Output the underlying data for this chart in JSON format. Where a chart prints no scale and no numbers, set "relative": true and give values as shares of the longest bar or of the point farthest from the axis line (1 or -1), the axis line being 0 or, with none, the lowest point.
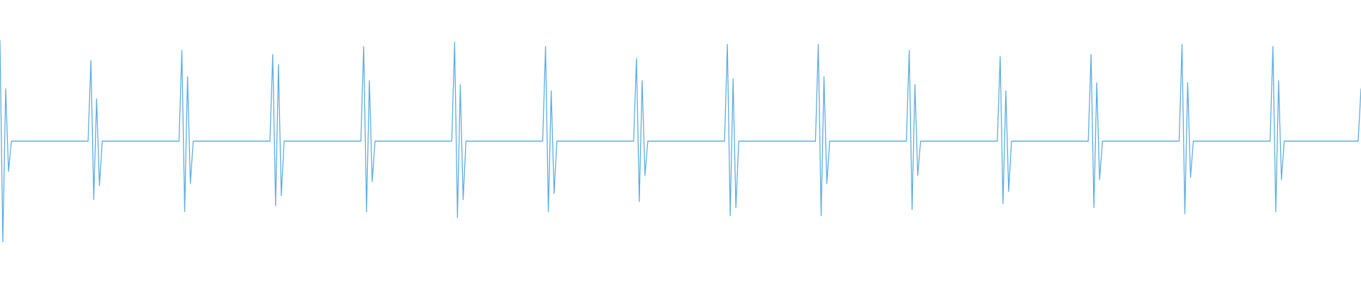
{
  "chart_data": {
    "type": "line",
    "relative": true,
    "tick_labels": false,
    "line_style": "solid",
    "categories": [
      null,
      null,
      null,
      null,
      null,
      null,
      null,
      null,
      null,
      null,
      null,
      null,
      null,
      null,
      null,
      null,
      null,
      null,
      null,
      null,
      null,
      null,
      null,
      null,
      null,
      null,
      null,
      null,
      null,
      null,
      null,
      null,
      null,
      null,
      null,
      null,
      null,
      null,
      null,
      null,
      null,
      null,
      null,
      null,
      null,
      null,
      null,
      null,
      null,
      null,
      null,
      null,
      null,
      null,
      null,
      null,
      null,
      null,
      null,
      null,
      null,
      null,
      null,
      null,
      null,
      null,
      null,
      null,
      null,
      null,
      null,
      null,
      null,
      null,
      null,
      null,
      null,
      null,
      null,
      null,
      null,
      null,
      null,
      null,
      null,
      null,
      null,
      null,
      null,
      null,
      null,
      null,
      null,
      null,
      null,
      null,
      null,
      null,
      null,
      null,
      null,
      null,
      null,
      null,
      null,
      null,
      null,
      null,
      null,
      null,
      null,
      null,
      null,
      null,
      null,
      null,
      null,
      null,
      null,
      null,
      null,
      null,
      null,
      null,
      null,
      null,
      null,
      null,
      null,
      null,
      null,
      null,
      null,
      null,
      null,
      null,
      null,
      null,
      null,
      null,
      null,
      null,
      null,
      null,
      null,
      null,
      null,
      null,
      null,
      null,
      null,
      null,
      null,
      null,
      null,
      null,
      null,
      null,
      null,
      null,
      null,
      null,
      null,
      null,
      null,
      null,
      null,
      null,
      null,
      null,
      null,
      null,
      null,
      null,
      null,
      null,
      null,
      null,
      null,
      null,
      null,
      null,
      null,
      null,
      null,
      null,
      null,
      null,
      null,
      null,
      null,
      null,
      null,
      null,
      null,
      null,
      null,
      null,
      null,
      null,
      null,
      null,
      null,
      null,
      null,
      null,
      null,
      null,
      null,
      null,
      null,
      null,
      null,
      null,
      null,
      null,
      null,
      null,
      null,
      null,
      null,
      null,
      null,
      null,
      null,
      null,
      null,
      null,
      null,
      null,
      null,
      null,
      null,
      null,
      null,
      null,
      null,
      null,
      null,
      null,
      null,
      null,
      null,
      null,
      null,
      null,
      null,
      null,
      null,
      null,
      null,
      null,
      null,
      null,
      null,
      null,
      null,
      null,
      null,
      null,
      null,
      null,
      null,
      null,
      null,
      null,
      null,
      null,
      null,
      null,
      null,
      null,
      null,
      null,
      null,
      null,
      null,
      null,
      null,
      null,
      null,
      null,
      null,
      null,
      null,
      null,
      null,
      null,
      null,
      null,
      null,
      null,
      null,
      null,
      null,
      null,
      null,
      null,
      null,
      null,
      null,
      null,
      null,
      null,
      null,
      null,
      null,
      null,
      null,
      null,
      null,
      null,
      null,
      null,
      null,
      null,
      null,
      null,
      null,
      null,
      null,
      null,
      null,
      null,
      null,
      null,
      null,
      null,
      null,
      null,
      null,
      null,
      null,
      null,
      null,
      null,
      null,
      null,
      null,
      null,
      null,
      null,
      null,
      null,
      null,
      null,
      null,
      null,
      null,
      null,
      null,
      null,
      null,
      null,
      null,
      null,
      null,
      null,
      null,
      null,
      null,
      null,
      null,
      null,
      null,
      null,
      null,
      null,
      null,
      null,
      null,
      null,
      null,
      null,
      null,
      null,
      null,
      null,
      null,
      null,
      null,
      null,
      null,
      null,
      null,
      null,
      null,
      null,
      null,
      null,
      null,
      null,
      null,
      null,
      null,
      null,
      null,
      null,
      null,
      null,
      null,
      null,
      null,
      null,
      null,
      null,
      null,
      null,
      null,
      null,
      null,
      null,
      null,
      null,
      null,
      null,
      null,
      null,
      null,
      null,
      null,
      null,
      null,
      null,
      null,
      null,
      null,
      null,
      null,
      null,
      null,
      null,
      null,
      null,
      null,
      null,
      null,
      null,
      null,
      null,
      null,
      null,
      null,
      null,
      null,
      null,
      null,
      null,
      null,
      null,
      null,
      null,
      null,
      null,
      null,
      null,
      null,
      null,
      null,
      null,
      null,
      null,
      null,
      null,
      null,
      null,
      null,
      null,
      null,
      null,
      null,
      null,
      null,
      null,
      null,
      null,
      null,
      null,
      null,
      null
    ],
    "series": [
      {
        "color": "#5dade2",
        "values": [
          1.0,
          0.0,
          0.76,
          0.35,
          0.5,
          0.5,
          0.5,
          0.5,
          0.5,
          0.5,
          0.5,
          0.5,
          0.5,
          0.5,
          0.5,
          0.5,
          0.5,
          0.5,
          0.5,
          0.5,
          0.5,
          0.5,
          0.5,
          0.5,
          0.5,
          0.5,
          0.5,
          0.5,
          0.5,
          0.5,
          0.5,
          0.5,
          0.9,
          0.21,
          0.71,
          0.28,
          0.5,
          0.5,
          0.5,
          0.5,
          0.5,
          0.5,
          0.5,
          0.5,
          0.5,
          0.5,
          0.5,
          0.5,
          0.5,
          0.5,
          0.5,
          0.5,
          0.5,
          0.5,
          0.5,
          0.5,
          0.5,
          0.5,
          0.5,
          0.5,
          0.5,
          0.5,
          0.5,
          0.5,
          0.95,
          0.15,
          0.82,
          0.29,
          0.5,
          0.5,
          0.5,
          0.5,
          0.5,
          0.5,
          0.5,
          0.5,
          0.5,
          0.5,
          0.5,
          0.5,
          0.5,
          0.5,
          0.5,
          0.5,
          0.5,
          0.5,
          0.5,
          0.5,
          0.5,
          0.5,
          0.5,
          0.5,
          0.5,
          0.5,
          0.5,
          0.5,
          0.93,
          0.18,
          0.88,
          0.23,
          0.5,
          0.5,
          0.5,
          0.5,
          0.5,
          0.5,
          0.5,
          0.5,
          0.5,
          0.5,
          0.5,
          0.5,
          0.5,
          0.5,
          0.5,
          0.5,
          0.5,
          0.5,
          0.5,
          0.5,
          0.5,
          0.5,
          0.5,
          0.5,
          0.5,
          0.5,
          0.5,
          0.5,
          0.97,
          0.15,
          0.8,
          0.3,
          0.5,
          0.5,
          0.5,
          0.5,
          0.5,
          0.5,
          0.5,
          0.5,
          0.5,
          0.5,
          0.5,
          0.5,
          0.5,
          0.5,
          0.5,
          0.5,
          0.5,
          0.5,
          0.5,
          0.5,
          0.5,
          0.5,
          0.5,
          0.5,
          0.5,
          0.5,
          0.5,
          0.5,
          0.99,
          0.12,
          0.78,
          0.21,
          0.5,
          0.5,
          0.5,
          0.5,
          0.5,
          0.5,
          0.5,
          0.5,
          0.5,
          0.5,
          0.5,
          0.5,
          0.5,
          0.5,
          0.5,
          0.5,
          0.5,
          0.5,
          0.5,
          0.5,
          0.5,
          0.5,
          0.5,
          0.5,
          0.5,
          0.5,
          0.5,
          0.5,
          0.97,
          0.15,
          0.75,
          0.24,
          0.5,
          0.5,
          0.5,
          0.5,
          0.5,
          0.5,
          0.5,
          0.5,
          0.5,
          0.5,
          0.5,
          0.5,
          0.5,
          0.5,
          0.5,
          0.5,
          0.5,
          0.5,
          0.5,
          0.5,
          0.5,
          0.5,
          0.5,
          0.5,
          0.5,
          0.5,
          0.5,
          0.5,
          0.91,
          0.2,
          0.8,
          0.33,
          0.5,
          0.5,
          0.5,
          0.5,
          0.5,
          0.5,
          0.5,
          0.5,
          0.5,
          0.5,
          0.5,
          0.5,
          0.5,
          0.5,
          0.5,
          0.5,
          0.5,
          0.5,
          0.5,
          0.5,
          0.5,
          0.5,
          0.5,
          0.5,
          0.5,
          0.5,
          0.5,
          0.5,
          0.98,
          0.13,
          0.81,
          0.17,
          0.5,
          0.5,
          0.5,
          0.5,
          0.5,
          0.5,
          0.5,
          0.5,
          0.5,
          0.5,
          0.5,
          0.5,
          0.5,
          0.5,
          0.5,
          0.5,
          0.5,
          0.5,
          0.5,
          0.5,
          0.5,
          0.5,
          0.5,
          0.5,
          0.5,
          0.5,
          0.5,
          0.5,
          0.98,
          0.13,
          0.82,
          0.29,
          0.5,
          0.5,
          0.5,
          0.5,
          0.5,
          0.5,
          0.5,
          0.5,
          0.5,
          0.5,
          0.5,
          0.5,
          0.5,
          0.5,
          0.5,
          0.5,
          0.5,
          0.5,
          0.5,
          0.5,
          0.5,
          0.5,
          0.5,
          0.5,
          0.5,
          0.5,
          0.5,
          0.5,
          0.95,
          0.16,
          0.78,
          0.33,
          0.5,
          0.5,
          0.5,
          0.5,
          0.5,
          0.5,
          0.5,
          0.5,
          0.5,
          0.5,
          0.5,
          0.5,
          0.5,
          0.5,
          0.5,
          0.5,
          0.5,
          0.5,
          0.5,
          0.5,
          0.5,
          0.5,
          0.5,
          0.5,
          0.5,
          0.5,
          0.5,
          0.5,
          0.92,
          0.19,
          0.75,
          0.25,
          0.5,
          0.5,
          0.5,
          0.5,
          0.5,
          0.5,
          0.5,
          0.5,
          0.5,
          0.5,
          0.5,
          0.5,
          0.5,
          0.5,
          0.5,
          0.5,
          0.5,
          0.5,
          0.5,
          0.5,
          0.5,
          0.5,
          0.5,
          0.5,
          0.5,
          0.5,
          0.5,
          0.5,
          0.93,
          0.17,
          0.79,
          0.31,
          0.5,
          0.5,
          0.5,
          0.5,
          0.5,
          0.5,
          0.5,
          0.5,
          0.5,
          0.5,
          0.5,
          0.5,
          0.5,
          0.5,
          0.5,
          0.5,
          0.5,
          0.5,
          0.5,
          0.5,
          0.5,
          0.5,
          0.5,
          0.5,
          0.5,
          0.5,
          0.5,
          0.5,
          0.98,
          0.14,
          0.79,
          0.32,
          0.5,
          0.5,
          0.5,
          0.5,
          0.5,
          0.5,
          0.5,
          0.5,
          0.5,
          0.5,
          0.5,
          0.5,
          0.5,
          0.5,
          0.5,
          0.5,
          0.5,
          0.5,
          0.5,
          0.5,
          0.5,
          0.5,
          0.5,
          0.5,
          0.5,
          0.5,
          0.5,
          0.5,
          0.97,
          0.15,
          0.8,
          0.31,
          0.5,
          0.5,
          0.5,
          0.5,
          0.5,
          0.5,
          0.5,
          0.5,
          0.5,
          0.5,
          0.5,
          0.5,
          0.5,
          0.5,
          0.5,
          0.5,
          0.5,
          0.5,
          0.5,
          0.5,
          0.5,
          0.5,
          0.5,
          0.5,
          0.5,
          0.5,
          0.5,
          0.76
        ]
      }
    ]
  }
}
